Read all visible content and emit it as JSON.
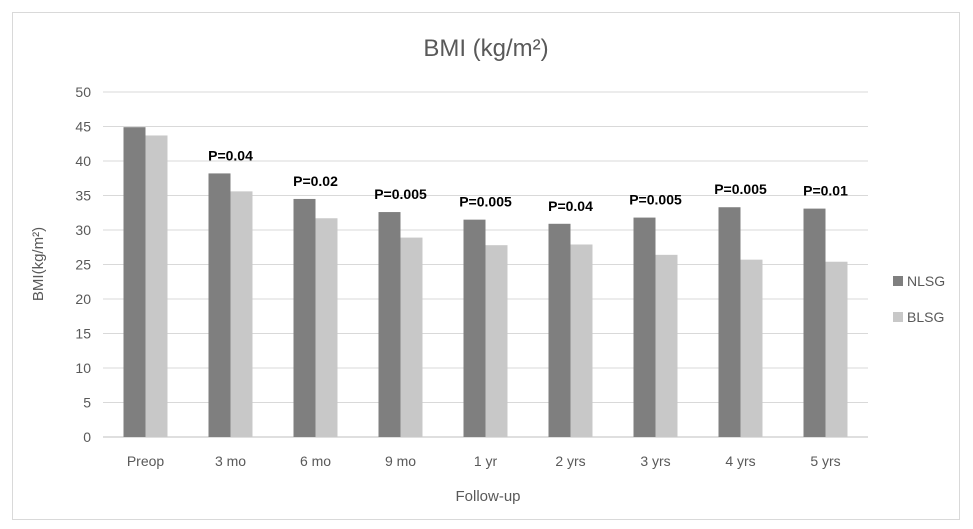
{
  "chart_data": {
    "type": "bar",
    "title": "BMI (kg/m²)",
    "xlabel": "Follow-up",
    "ylabel": "BMI(kg/m²)",
    "ylim": [
      0,
      50
    ],
    "yticks": [
      0,
      5,
      10,
      15,
      20,
      25,
      30,
      35,
      40,
      45,
      50
    ],
    "grid": true,
    "legend_position": "right",
    "categories": [
      "Preop",
      "3 mo",
      "6 mo",
      "9 mo",
      "1 yr",
      "2 yrs",
      "3 yrs",
      "4 yrs",
      "5 yrs"
    ],
    "series": [
      {
        "name": "NLSG",
        "color": "#7f7f7f",
        "values": [
          44.9,
          38.2,
          34.5,
          32.6,
          31.5,
          30.9,
          31.8,
          33.3,
          33.1
        ]
      },
      {
        "name": "BLSG",
        "color": "#c8c8c8",
        "values": [
          43.7,
          35.6,
          31.7,
          28.9,
          27.8,
          27.9,
          26.4,
          25.7,
          25.4
        ]
      }
    ],
    "annotations": [
      "",
      "P=0.04",
      "P=0.02",
      "P=0.005",
      "P=0.005",
      "P=0.04",
      "P=0.005",
      "P=0.005",
      "P=0.01"
    ]
  }
}
